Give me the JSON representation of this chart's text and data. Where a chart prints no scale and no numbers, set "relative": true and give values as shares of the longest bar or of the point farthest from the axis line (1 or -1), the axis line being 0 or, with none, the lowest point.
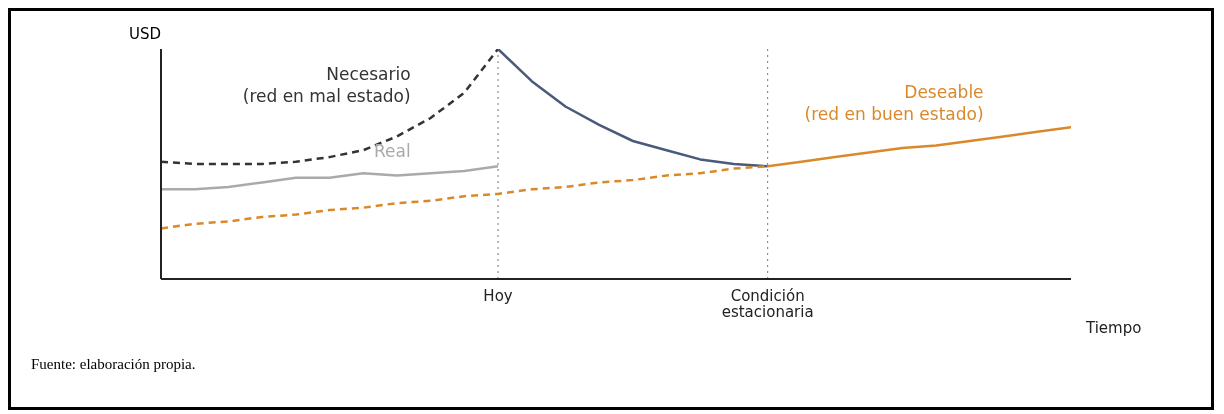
{
  "chart_data": {
    "type": "line",
    "relative": true,
    "xlabel": "Tiempo",
    "ylabel": "USD",
    "categories": [
      null,
      null,
      null,
      null,
      null,
      null,
      null,
      null,
      null,
      null,
      "Hoy",
      null,
      null,
      null,
      null,
      null,
      null,
      null,
      "Condición estacionaria",
      null,
      null,
      null,
      null,
      null,
      null,
      null,
      null,
      null
    ],
    "series": [
      {
        "name": "Necesario (red en mal estado)",
        "color": "#333333",
        "line_style": "dashed",
        "values": [
          0.51,
          0.5,
          0.5,
          0.5,
          0.51,
          0.53,
          0.56,
          0.62,
          0.7,
          0.81,
          1,
          null,
          null,
          null,
          null,
          null,
          null,
          null,
          null,
          null,
          null,
          null,
          null,
          null,
          null,
          null,
          null,
          null
        ]
      },
      {
        "name": "Real",
        "color": "#aaaaaa",
        "line_style": "solid",
        "values": [
          0.39,
          0.39,
          0.4,
          0.42,
          0.44,
          0.44,
          0.46,
          0.45,
          0.46,
          0.47,
          0.49,
          null,
          null,
          null,
          null,
          null,
          null,
          null,
          null,
          null,
          null,
          null,
          null,
          null,
          null,
          null,
          null,
          null
        ]
      },
      {
        "color": "#4a5a7a",
        "line_style": "solid",
        "values": [
          null,
          null,
          null,
          null,
          null,
          null,
          null,
          null,
          null,
          null,
          1,
          0.86,
          0.75,
          0.67,
          0.6,
          0.56,
          0.52,
          0.5,
          0.49,
          null,
          null,
          null,
          null,
          null,
          null,
          null,
          null,
          null
        ]
      },
      {
        "color": "#d9892b",
        "line_style": "dashed",
        "values": [
          0.22,
          0.24,
          0.25,
          0.27,
          0.28,
          0.3,
          0.31,
          0.33,
          0.34,
          0.36,
          0.37,
          0.39,
          0.4,
          0.42,
          0.43,
          0.45,
          0.46,
          0.48,
          0.49,
          null,
          null,
          null,
          null,
          null,
          null,
          null,
          null,
          null
        ]
      },
      {
        "name": "Deseable (red en buen estado)",
        "color": "#d9892b",
        "line_style": "solid",
        "values": [
          null,
          null,
          null,
          null,
          null,
          null,
          null,
          null,
          null,
          null,
          null,
          null,
          null,
          null,
          null,
          null,
          null,
          null,
          0.49,
          0.51,
          0.53,
          0.55,
          0.57,
          0.58,
          0.6,
          0.62,
          0.64,
          0.66
        ]
      }
    ],
    "ref_lines": [
      {
        "axis": "x",
        "value": "Hoy",
        "color": "#777777",
        "line_style": "dotted"
      },
      {
        "axis": "x",
        "value": "Condición estacionaria",
        "color": "#777777",
        "line_style": "dotted"
      }
    ],
    "annotations": [
      "Fuente: elaboración propia."
    ]
  }
}
